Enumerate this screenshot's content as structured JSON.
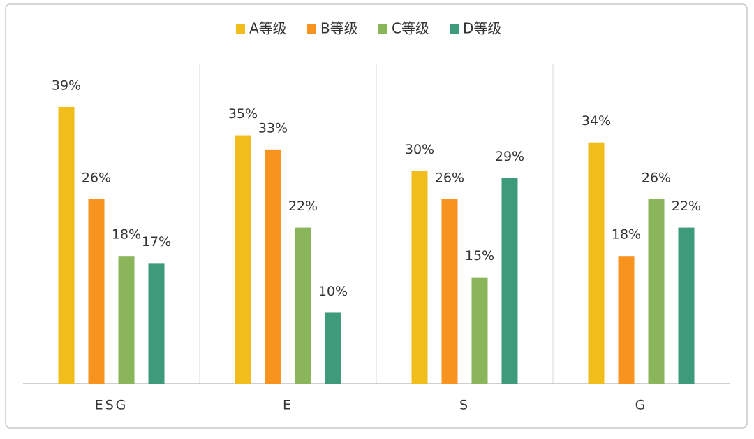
{
  "chart_data": {
    "type": "bar",
    "categories": [
      "ESG",
      "E",
      "S",
      "G"
    ],
    "series": [
      {
        "name": "A等级",
        "color": "#f0bd1a",
        "values": [
          39,
          35,
          30,
          34
        ],
        "value_labels": [
          "39%",
          "35%",
          "30%",
          "34%"
        ]
      },
      {
        "name": "B等级",
        "color": "#f7931e",
        "values": [
          26,
          33,
          26,
          18
        ],
        "value_labels": [
          "26%",
          "33%",
          "26%",
          "18%"
        ]
      },
      {
        "name": "C等级",
        "color": "#8ab55a",
        "values": [
          18,
          22,
          15,
          26
        ],
        "value_labels": [
          "18%",
          "22%",
          "15%",
          "26%"
        ]
      },
      {
        "name": "D等级",
        "color": "#3d9a7a",
        "values": [
          17,
          10,
          29,
          22
        ],
        "value_labels": [
          "17%",
          "10%",
          "29%",
          "22%"
        ]
      }
    ],
    "ylim": [
      0,
      45
    ],
    "legend": "top"
  }
}
